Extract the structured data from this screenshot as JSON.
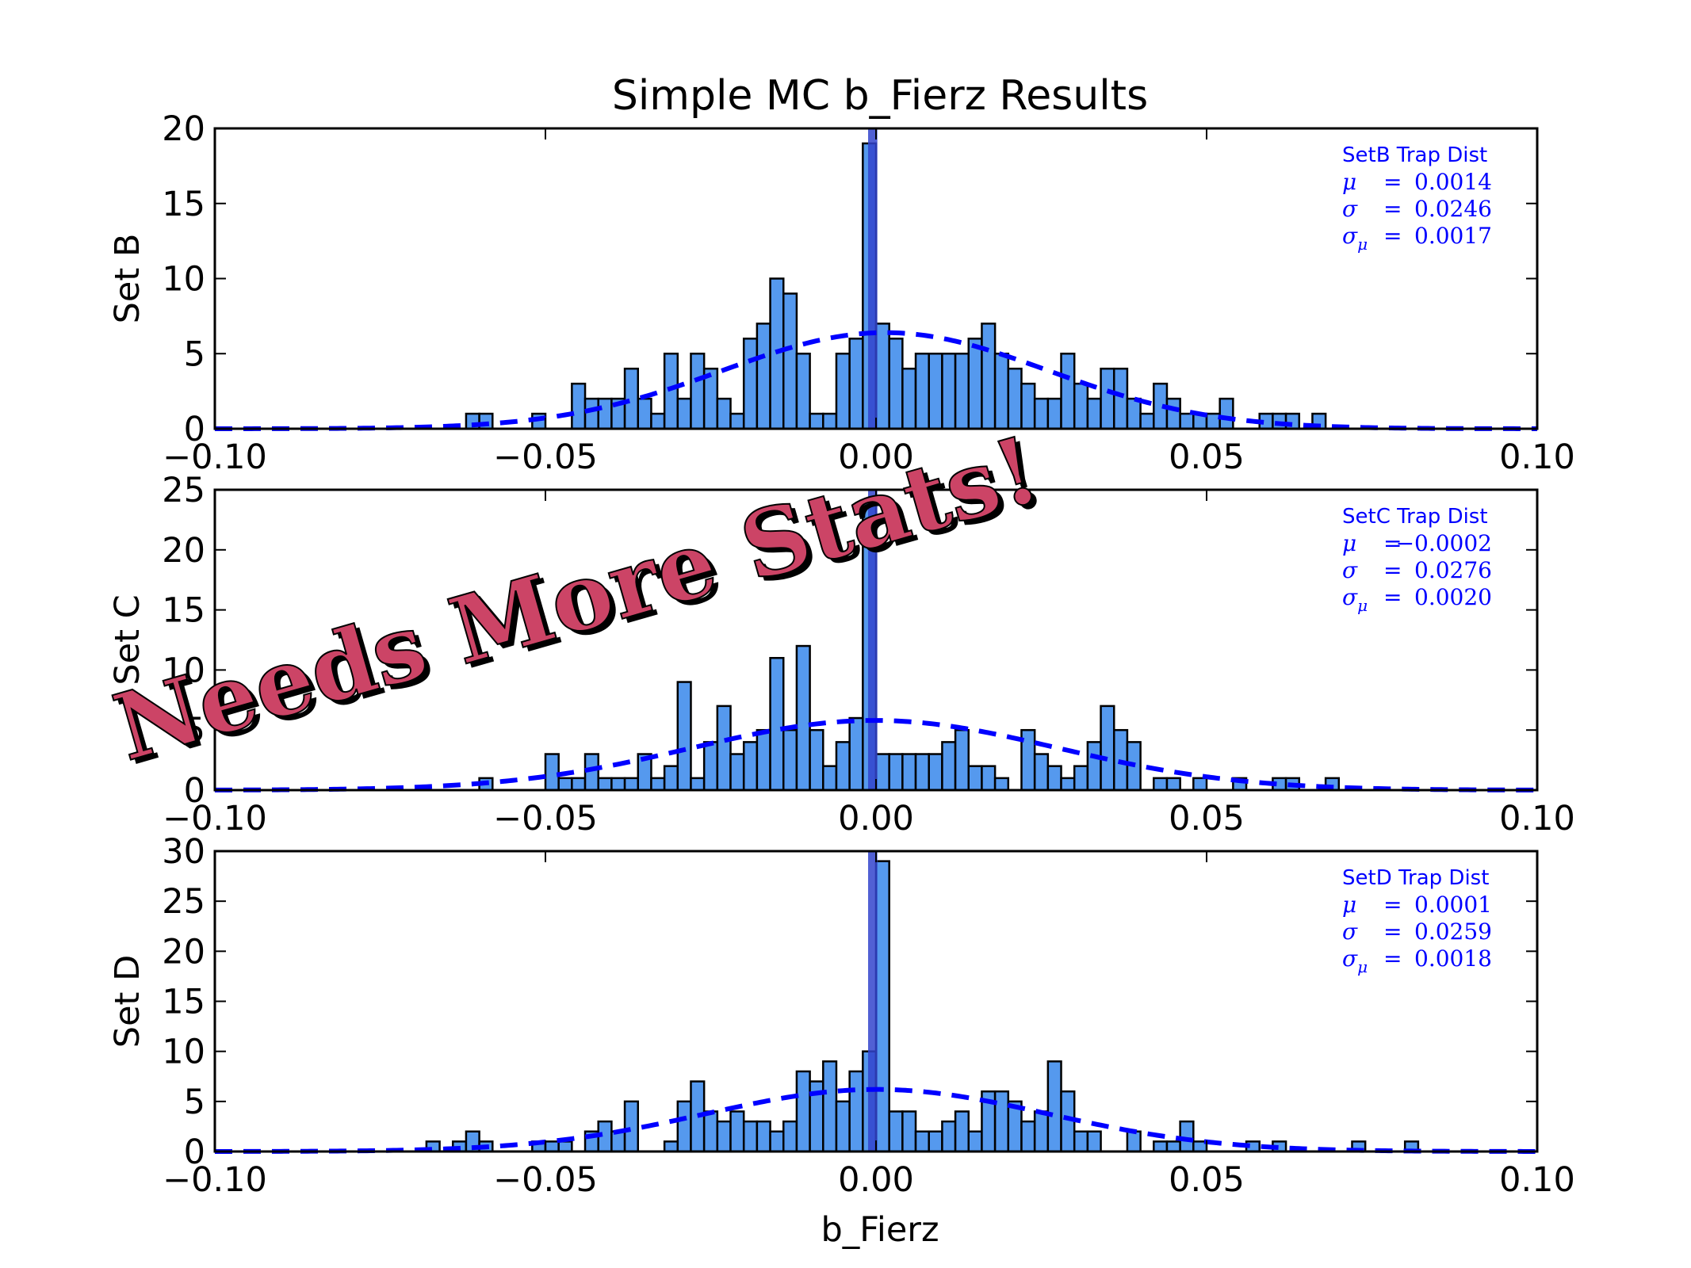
{
  "figure": {
    "title": "Simple MC b_Fierz Results",
    "xlabel": "b_Fierz",
    "overlay_text": "Needs More Stats!",
    "colors": {
      "bar_fill": "#5599ee",
      "bar_edge": "#000000",
      "fit_line": "#0000ff",
      "center_band": "#3344cc",
      "overlay_fill": "#cc4466",
      "overlay_shadow": "#000000"
    }
  },
  "chart_data": [
    {
      "type": "bar",
      "ylabel": "Set B",
      "xlim": [
        -0.1,
        0.1
      ],
      "ylim": [
        0,
        20
      ],
      "xticks": [
        "−0.10",
        "−0.05",
        "0.00",
        "0.05",
        "0.10"
      ],
      "xtick_values": [
        -0.1,
        -0.05,
        0,
        0.05,
        0.1
      ],
      "yticks": [
        "0",
        "5",
        "10",
        "15",
        "20"
      ],
      "ytick_values": [
        0,
        5,
        10,
        15,
        20
      ],
      "bin_width": 0.002,
      "bin_starts": [
        -0.062,
        -0.06,
        -0.052,
        -0.046,
        -0.044,
        -0.042,
        -0.04,
        -0.038,
        -0.036,
        -0.034,
        -0.032,
        -0.03,
        -0.028,
        -0.026,
        -0.024,
        -0.022,
        -0.02,
        -0.018,
        -0.016,
        -0.014,
        -0.012,
        -0.01,
        -0.008,
        -0.006,
        -0.004,
        -0.002,
        0.0,
        0.002,
        0.004,
        0.006,
        0.008,
        0.01,
        0.012,
        0.014,
        0.016,
        0.018,
        0.02,
        0.022,
        0.024,
        0.026,
        0.028,
        0.03,
        0.032,
        0.034,
        0.036,
        0.038,
        0.04,
        0.042,
        0.044,
        0.046,
        0.048,
        0.05,
        0.052,
        0.058,
        0.06,
        0.062,
        0.066
      ],
      "counts": [
        1,
        1,
        1,
        3,
        2,
        2,
        2,
        4,
        2,
        1,
        5,
        2,
        5,
        4,
        2,
        1,
        6,
        7,
        10,
        9,
        5,
        1,
        1,
        5,
        6,
        19,
        7,
        6,
        4,
        5,
        5,
        5,
        5,
        6,
        7,
        5,
        4,
        3,
        2,
        2,
        5,
        3,
        2,
        4,
        4,
        2,
        1,
        3,
        2,
        1,
        1,
        1,
        2,
        1,
        1,
        1,
        1
      ],
      "fit": {
        "mu": 0.0014,
        "sigma": 0.0246,
        "peak": 6.4
      },
      "center_band": [
        -0.0012,
        0.0002
      ],
      "stats": {
        "title": "SetB Trap Dist",
        "mu": "0.0014",
        "sigma": "0.0246",
        "sigma_mu": "0.0017"
      }
    },
    {
      "type": "bar",
      "ylabel": "Set C",
      "xlim": [
        -0.1,
        0.1
      ],
      "ylim": [
        0,
        25
      ],
      "xticks": [
        "−0.10",
        "−0.05",
        "0.00",
        "0.05",
        "0.10"
      ],
      "xtick_values": [
        -0.1,
        -0.05,
        0,
        0.05,
        0.1
      ],
      "yticks": [
        "0",
        "5",
        "10",
        "15",
        "20",
        "25"
      ],
      "ytick_values": [
        0,
        5,
        10,
        15,
        20,
        25
      ],
      "bin_width": 0.002,
      "bin_starts": [
        -0.06,
        -0.05,
        -0.048,
        -0.046,
        -0.044,
        -0.042,
        -0.04,
        -0.038,
        -0.036,
        -0.034,
        -0.032,
        -0.03,
        -0.028,
        -0.026,
        -0.024,
        -0.022,
        -0.02,
        -0.018,
        -0.016,
        -0.014,
        -0.012,
        -0.01,
        -0.008,
        -0.006,
        -0.004,
        -0.002,
        0.0,
        0.002,
        0.004,
        0.006,
        0.008,
        0.01,
        0.012,
        0.014,
        0.016,
        0.018,
        0.022,
        0.024,
        0.026,
        0.028,
        0.03,
        0.032,
        0.034,
        0.036,
        0.038,
        0.042,
        0.044,
        0.048,
        0.054,
        0.06,
        0.062,
        0.068
      ],
      "counts": [
        1,
        3,
        1,
        1,
        3,
        1,
        1,
        1,
        3,
        1,
        2,
        9,
        1,
        4,
        7,
        3,
        4,
        5,
        11,
        5,
        12,
        5,
        2,
        4,
        6,
        24,
        3,
        3,
        3,
        3,
        3,
        4,
        5,
        2,
        2,
        1,
        5,
        3,
        2,
        1,
        2,
        4,
        7,
        5,
        4,
        1,
        1,
        1,
        1,
        1,
        1,
        1
      ],
      "fit": {
        "mu": -0.0002,
        "sigma": 0.0276,
        "peak": 5.8
      },
      "center_band": [
        -0.0012,
        0.0002
      ],
      "stats": {
        "title": "SetC Trap Dist",
        "mu": "−0.0002",
        "sigma": "0.0276",
        "sigma_mu": "0.0020"
      }
    },
    {
      "type": "bar",
      "ylabel": "Set D",
      "xlim": [
        -0.1,
        0.1
      ],
      "ylim": [
        0,
        30
      ],
      "xticks": [
        "−0.10",
        "−0.05",
        "0.00",
        "0.05",
        "0.10"
      ],
      "xtick_values": [
        -0.1,
        -0.05,
        0,
        0.05,
        0.1
      ],
      "yticks": [
        "0",
        "5",
        "10",
        "15",
        "20",
        "25",
        "30"
      ],
      "ytick_values": [
        0,
        5,
        10,
        15,
        20,
        25,
        30
      ],
      "bin_width": 0.002,
      "bin_starts": [
        -0.068,
        -0.064,
        -0.062,
        -0.06,
        -0.052,
        -0.05,
        -0.048,
        -0.044,
        -0.042,
        -0.04,
        -0.038,
        -0.032,
        -0.03,
        -0.028,
        -0.026,
        -0.024,
        -0.022,
        -0.02,
        -0.018,
        -0.016,
        -0.014,
        -0.012,
        -0.01,
        -0.008,
        -0.006,
        -0.004,
        -0.002,
        0.0,
        0.002,
        0.004,
        0.006,
        0.008,
        0.01,
        0.012,
        0.014,
        0.016,
        0.018,
        0.02,
        0.022,
        0.024,
        0.026,
        0.028,
        0.03,
        0.032,
        0.038,
        0.042,
        0.044,
        0.046,
        0.048,
        0.056,
        0.06,
        0.072,
        0.08
      ],
      "counts": [
        1,
        1,
        2,
        1,
        1,
        1,
        1,
        2,
        3,
        2,
        5,
        1,
        5,
        7,
        4,
        3,
        4,
        3,
        3,
        2,
        3,
        8,
        7,
        9,
        5,
        8,
        10,
        29,
        4,
        4,
        2,
        2,
        3,
        4,
        2,
        6,
        6,
        5,
        3,
        4,
        9,
        6,
        2,
        2,
        2,
        1,
        1,
        3,
        1,
        1,
        1,
        1,
        1
      ],
      "fit": {
        "mu": 0.0001,
        "sigma": 0.0259,
        "peak": 6.2
      },
      "center_band": [
        -0.0012,
        0.0002
      ],
      "stats": {
        "title": "SetD Trap Dist",
        "mu": "0.0001",
        "sigma": "0.0259",
        "sigma_mu": "0.0018"
      }
    }
  ]
}
